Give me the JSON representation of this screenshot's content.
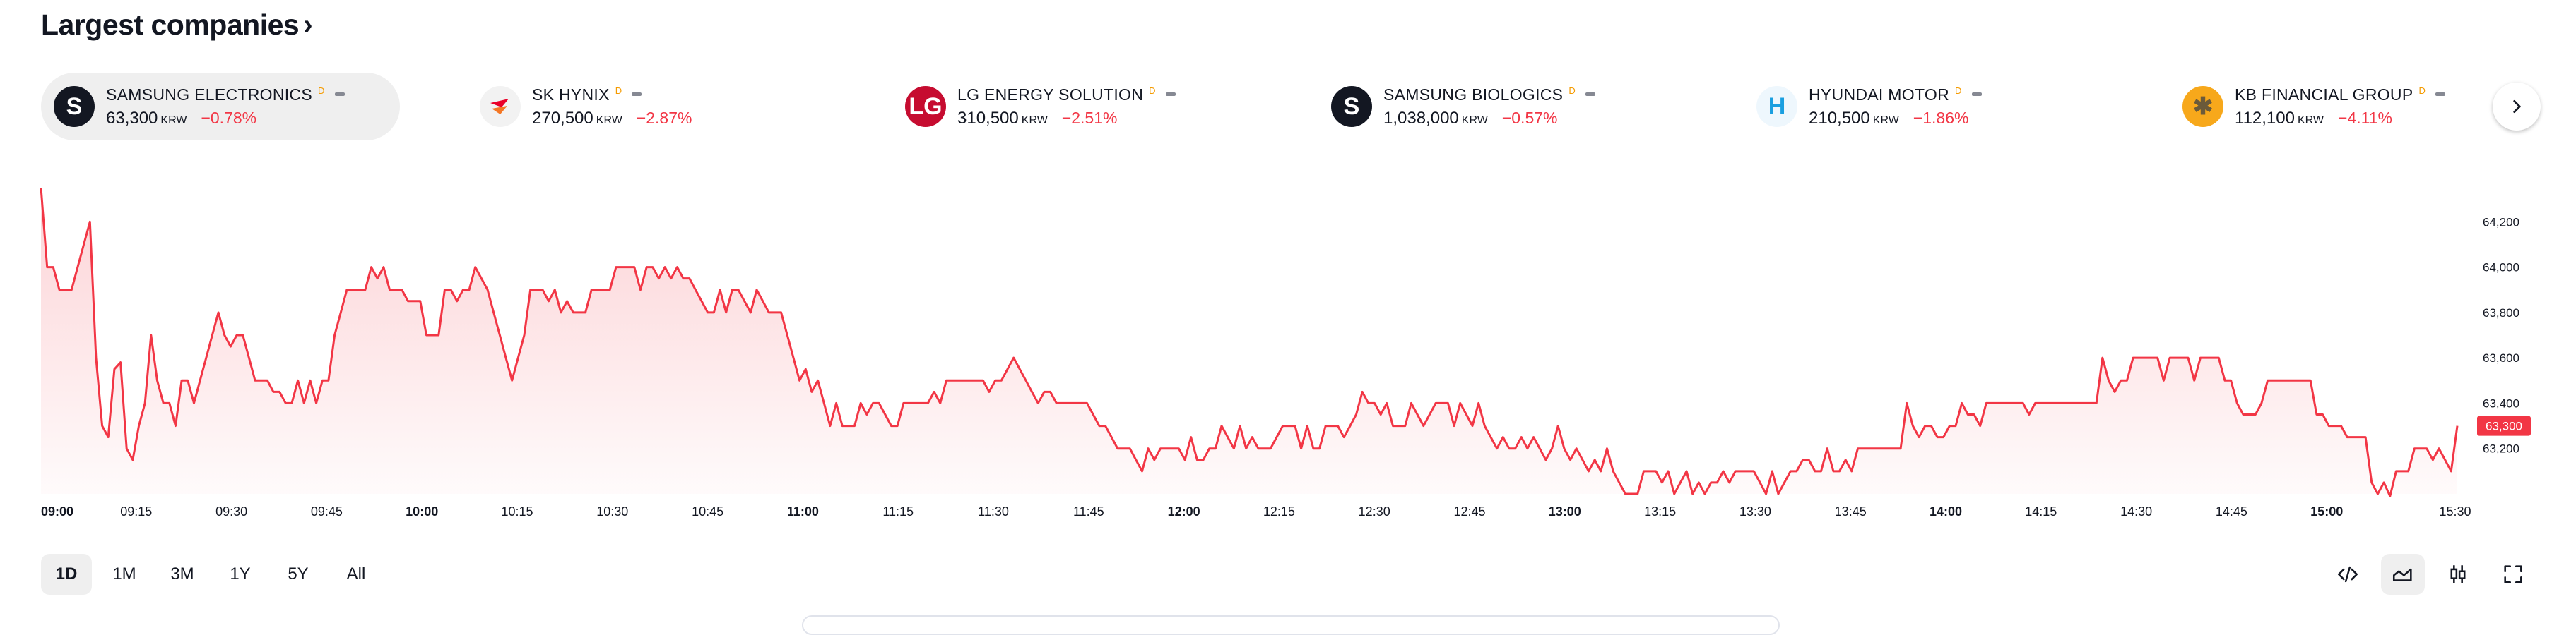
{
  "header": {
    "title": "Largest companies",
    "chevron_icon": "chevron-right-icon"
  },
  "tickers": [
    {
      "name": "SAMSUNG ELECTRONICS",
      "badge": "D",
      "price": "63,300",
      "currency": "KRW",
      "change": "−0.78%",
      "logo_text": "S",
      "logo_bg": "#131722",
      "logo_fg": "#ffffff",
      "icon": "samsung-logo-icon"
    },
    {
      "name": "SK HYNIX",
      "badge": "D",
      "price": "270,500",
      "currency": "KRW",
      "change": "−2.87%",
      "logo_text": "",
      "logo_bg": "#f2f2f2",
      "logo_fg": "#ea0029",
      "icon": "sk-butterfly-logo-icon"
    },
    {
      "name": "LG ENERGY SOLUTION",
      "badge": "D",
      "price": "310,500",
      "currency": "KRW",
      "change": "−2.51%",
      "logo_text": "LG",
      "logo_bg": "#c60c30",
      "logo_fg": "#ffffff",
      "icon": "lg-logo-icon"
    },
    {
      "name": "SAMSUNG BIOLOGICS",
      "badge": "D",
      "price": "1,038,000",
      "currency": "KRW",
      "change": "−0.57%",
      "logo_text": "S",
      "logo_bg": "#131722",
      "logo_fg": "#ffffff",
      "icon": "samsung-logo-icon"
    },
    {
      "name": "HYUNDAI MOTOR",
      "badge": "D",
      "price": "210,500",
      "currency": "KRW",
      "change": "−1.86%",
      "logo_text": "H",
      "logo_bg": "#eef7fd",
      "logo_fg": "#1a9fe0",
      "icon": "hyundai-logo-icon"
    },
    {
      "name": "KB FINANCIAL GROUP",
      "badge": "D",
      "price": "112,100",
      "currency": "KRW",
      "change": "−4.11%",
      "logo_text": "✱",
      "logo_bg": "#f7a81b",
      "logo_fg": "#6b5a3a",
      "icon": "kb-star-logo-icon"
    }
  ],
  "next_button": {
    "icon": "chevron-right-icon"
  },
  "chart_data": {
    "type": "area",
    "series": [
      {
        "values": [
          64350,
          64000,
          64000,
          63900,
          63900,
          63900,
          64000,
          64100,
          64200,
          63600,
          63300,
          63250,
          63550,
          63580,
          63200,
          63150,
          63300,
          63400,
          63700,
          63500,
          63400,
          63400,
          63300,
          63500,
          63500,
          63400,
          63500,
          63600,
          63700,
          63800,
          63700,
          63650,
          63700,
          63700,
          63600,
          63500,
          63500,
          63500,
          63450,
          63450,
          63400,
          63400,
          63500,
          63400,
          63500,
          63400,
          63500,
          63500,
          63700,
          63800,
          63900,
          63900,
          63900,
          63900,
          64000,
          63950,
          64000,
          63900,
          63900,
          63900,
          63850,
          63850,
          63850,
          63700,
          63700,
          63700,
          63900,
          63900,
          63850,
          63900,
          63900,
          64000,
          63950,
          63900,
          63800,
          63700,
          63600,
          63500,
          63600,
          63700,
          63900,
          63900,
          63900,
          63850,
          63900,
          63800,
          63850,
          63800,
          63800,
          63800,
          63900,
          63900,
          63900,
          63900,
          64000,
          64000,
          64000,
          64000,
          63900,
          64000,
          64000,
          63950,
          64000,
          63950,
          64000,
          63950,
          63950,
          63900,
          63850,
          63800,
          63800,
          63900,
          63800,
          63900,
          63900,
          63850,
          63800,
          63900,
          63850,
          63800,
          63800,
          63800,
          63700,
          63600,
          63500,
          63550,
          63450,
          63500,
          63400,
          63300,
          63400,
          63300,
          63300,
          63300,
          63400,
          63350,
          63400,
          63400,
          63350,
          63300,
          63300,
          63400,
          63400,
          63400,
          63400,
          63400,
          63450,
          63400,
          63500,
          63500,
          63500,
          63500,
          63500,
          63500,
          63500,
          63450,
          63500,
          63500,
          63550,
          63600,
          63550,
          63500,
          63450,
          63400,
          63450,
          63450,
          63400,
          63400,
          63400,
          63400,
          63400,
          63400,
          63350,
          63300,
          63300,
          63250,
          63200,
          63200,
          63200,
          63150,
          63100,
          63200,
          63150,
          63200,
          63200,
          63200,
          63200,
          63150,
          63250,
          63150,
          63150,
          63200,
          63200,
          63300,
          63250,
          63200,
          63300,
          63200,
          63250,
          63200,
          63200,
          63200,
          63250,
          63300,
          63300,
          63300,
          63200,
          63300,
          63200,
          63200,
          63300,
          63300,
          63300,
          63250,
          63300,
          63350,
          63450,
          63400,
          63400,
          63350,
          63400,
          63300,
          63300,
          63300,
          63400,
          63350,
          63300,
          63350,
          63400,
          63400,
          63400,
          63300,
          63400,
          63350,
          63300,
          63400,
          63300,
          63250,
          63200,
          63250,
          63200,
          63200,
          63250,
          63200,
          63250,
          63200,
          63150,
          63200,
          63300,
          63200,
          63150,
          63200,
          63150,
          63100,
          63150,
          63100,
          63200,
          63100,
          63050,
          63000,
          63000,
          63000,
          63100,
          63100,
          63100,
          63050,
          63100,
          63000,
          63050,
          63100,
          63000,
          63050,
          63000,
          63050,
          63050,
          63100,
          63050,
          63100,
          63100,
          63100,
          63100,
          63050,
          63000,
          63100,
          63000,
          63050,
          63100,
          63100,
          63150,
          63150,
          63100,
          63100,
          63200,
          63100,
          63100,
          63150,
          63100,
          63200,
          63200,
          63200,
          63200,
          63200,
          63200,
          63200,
          63200,
          63400,
          63300,
          63250,
          63300,
          63300,
          63250,
          63250,
          63300,
          63300,
          63400,
          63350,
          63350,
          63300,
          63400,
          63400,
          63400,
          63400,
          63400,
          63400,
          63400,
          63350,
          63400,
          63400,
          63400,
          63400,
          63400,
          63400,
          63400,
          63400,
          63400,
          63400,
          63400,
          63600,
          63500,
          63450,
          63500,
          63500,
          63600,
          63600,
          63600,
          63600,
          63600,
          63500,
          63600,
          63600,
          63600,
          63600,
          63500,
          63600,
          63600,
          63600,
          63600,
          63500,
          63500,
          63400,
          63350,
          63350,
          63350,
          63400,
          63500,
          63500,
          63500,
          63500,
          63500,
          63500,
          63500,
          63500,
          63350,
          63350,
          63300,
          63300,
          63300,
          63250,
          63250,
          63250,
          63250,
          63050,
          63000,
          63050,
          62990,
          63100,
          63100,
          63100,
          63200,
          63200,
          63200,
          63150,
          63200,
          63150,
          63100,
          63300
        ]
      }
    ],
    "x_ticks": [
      "09:00",
      "09:15",
      "09:30",
      "09:45",
      "10:00",
      "10:15",
      "10:30",
      "10:45",
      "11:00",
      "11:15",
      "11:30",
      "11:45",
      "12:00",
      "12:15",
      "12:30",
      "12:45",
      "13:00",
      "13:15",
      "13:30",
      "13:45",
      "14:00",
      "14:15",
      "14:30",
      "14:45",
      "15:00",
      "15:30"
    ],
    "bold_ticks": [
      "09:00",
      "10:00",
      "11:00",
      "12:00",
      "13:00",
      "14:00",
      "15:00"
    ],
    "y_ticks": [
      "63,200",
      "63,400",
      "63,600",
      "63,800",
      "64,000",
      "64,200"
    ],
    "ylim": [
      63000,
      64400
    ],
    "last_price_label": "63,300",
    "line_color": "#f23645"
  },
  "ranges": [
    "1D",
    "1M",
    "3M",
    "1Y",
    "5Y",
    "All"
  ],
  "active_range": "1D",
  "toolbar": {
    "tools": [
      "embed-code-icon",
      "area-chart-icon",
      "candlestick-chart-icon",
      "fullscreen-icon"
    ],
    "active_tool": "area-chart-icon"
  }
}
